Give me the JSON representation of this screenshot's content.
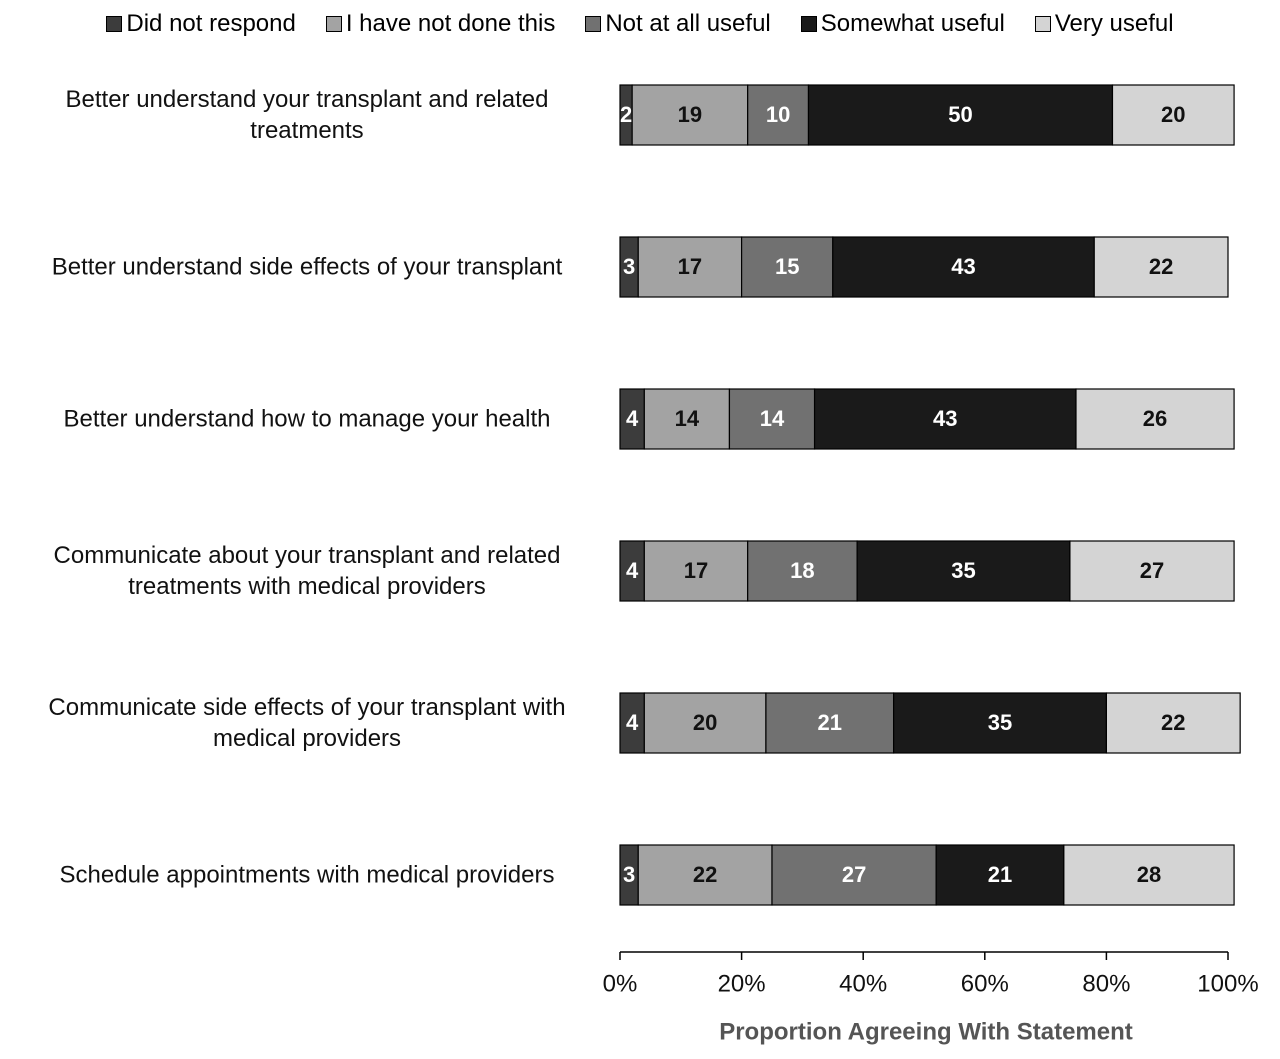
{
  "chart_data": {
    "type": "stacked-bar-horizontal",
    "x_label": "Proportion Agreeing With Statement",
    "categories": [
      "Better understand your transplant and related treatments",
      "Better understand side effects of your transplant",
      "Better understand how to manage your health",
      "Communicate about your transplant and related treatments with medical providers",
      "Communicate side effects of your transplant with medical providers",
      "Schedule appointments with medical providers"
    ],
    "series": [
      {
        "name": "Did not respond",
        "color": "#3c3c3c",
        "values": [
          2,
          3,
          4,
          4,
          4,
          3
        ]
      },
      {
        "name": "I have not done this",
        "color": "#a3a3a3",
        "values": [
          19,
          17,
          14,
          17,
          20,
          22
        ]
      },
      {
        "name": "Not at all useful",
        "color": "#717171",
        "values": [
          10,
          15,
          14,
          18,
          21,
          27
        ]
      },
      {
        "name": "Somewhat useful",
        "color": "#1a1a1a",
        "values": [
          50,
          43,
          43,
          35,
          35,
          21
        ]
      },
      {
        "name": "Very useful",
        "color": "#d4d4d4",
        "values": [
          20,
          22,
          26,
          27,
          22,
          28
        ]
      }
    ],
    "xlim": [
      0,
      100
    ],
    "xticks": [
      {
        "value": 0,
        "label": "0%"
      },
      {
        "value": 20,
        "label": "20%"
      },
      {
        "value": 40,
        "label": "40%"
      },
      {
        "value": 60,
        "label": "60%"
      },
      {
        "value": 80,
        "label": "80%"
      },
      {
        "value": 100,
        "label": "100%"
      }
    ],
    "legend": "top"
  }
}
